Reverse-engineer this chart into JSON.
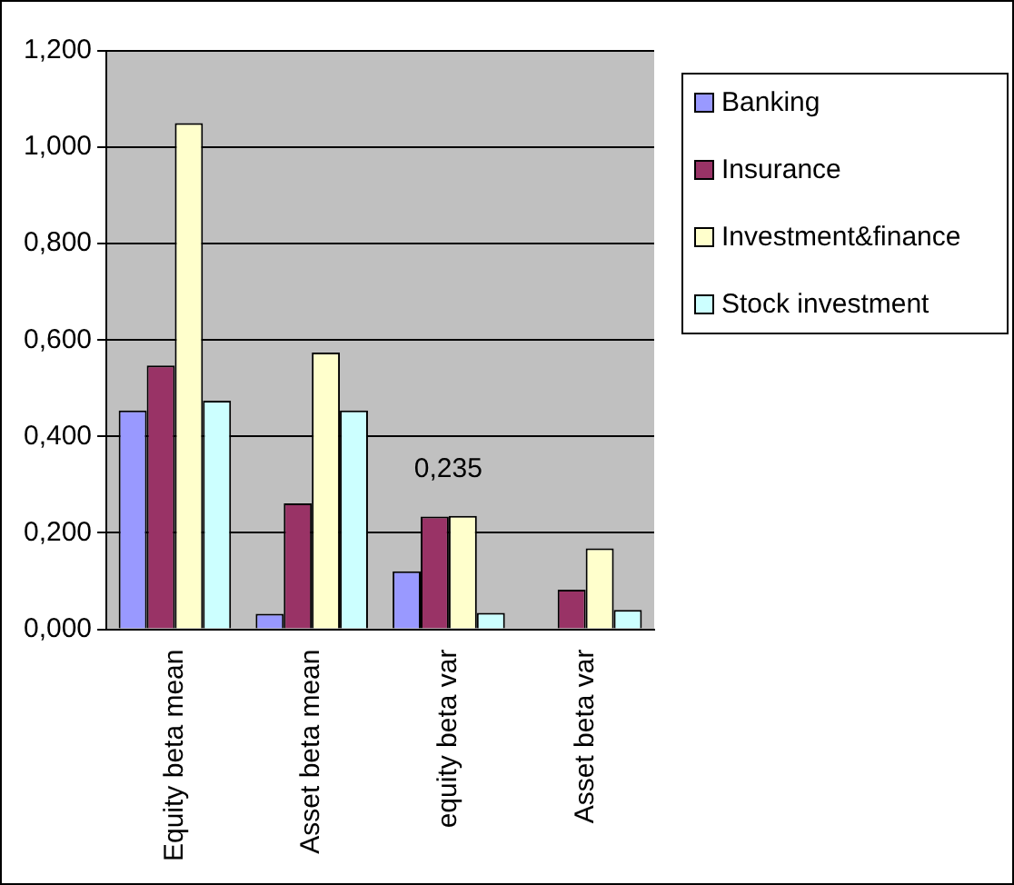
{
  "chart_data": {
    "type": "bar",
    "categories": [
      "Equity beta mean",
      "Asset beta mean",
      "equity beta var",
      "Asset beta var"
    ],
    "series": [
      {
        "name": "Banking",
        "color": "#9999ff",
        "values": [
          0.454,
          0.032,
          0.12,
          0
        ]
      },
      {
        "name": "Insurance",
        "color": "#993366",
        "values": [
          0.547,
          0.261,
          0.234,
          0.082
        ]
      },
      {
        "name": "Investment&finance",
        "color": "#ffffcc",
        "values": [
          1.05,
          0.574,
          0.235,
          0.168
        ],
        "value_labels": [
          null,
          null,
          "0,235",
          null
        ]
      },
      {
        "name": "Stock investment",
        "color": "#ccffff",
        "values": [
          0.474,
          0.454,
          0.034,
          0.04
        ]
      }
    ],
    "ylim": [
      0,
      1.2
    ],
    "yticks": [
      {
        "value": 0,
        "label": "0,000"
      },
      {
        "value": 0.2,
        "label": "0,200"
      },
      {
        "value": 0.4,
        "label": "0,400"
      },
      {
        "value": 0.6,
        "label": "0,600"
      },
      {
        "value": 0.8,
        "label": "0,800"
      },
      {
        "value": 1,
        "label": "1,000"
      },
      {
        "value": 1.2,
        "label": "1,200"
      }
    ],
    "grid": "y",
    "legend": "right"
  }
}
